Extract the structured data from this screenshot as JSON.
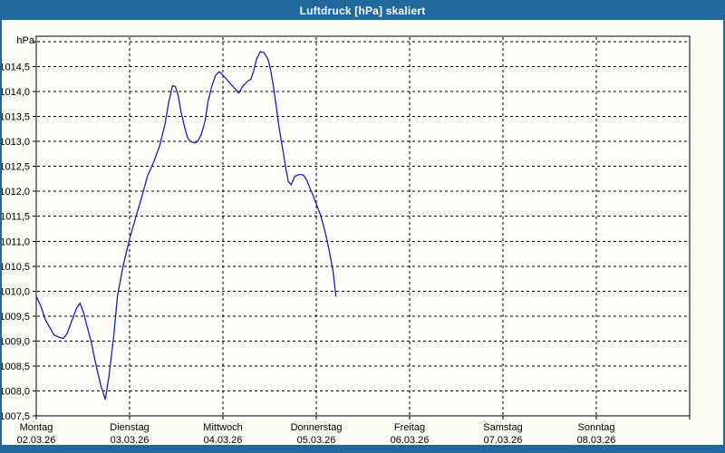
{
  "window": {
    "title": "Luftdruck [hPa] skaliert",
    "theme": {
      "titlebar_color": "#1f699c",
      "border_color": "#1f699c",
      "window_background": "#fcfcf4",
      "plot_background": "#fefefb",
      "grid_color": "#000000",
      "text_color": "#000000",
      "line_color": "#1c1cc4"
    }
  },
  "chart_data": {
    "type": "line",
    "title": "Luftdruck [hPa] skaliert",
    "unit_label": "hPa",
    "grid": "dashed",
    "legend": "none",
    "y_axis": {
      "min": 1007.5,
      "max": 1015.0,
      "step": 0.5,
      "tick_labels": [
        "1014,5",
        "1014,0",
        "1013,5",
        "1013,0",
        "1012,5",
        "1012,0",
        "1011,5",
        "1011,0",
        "1010,5",
        "1010,0",
        "1009,5",
        "1009,0",
        "1008,5",
        "1008,0",
        "1007,5"
      ]
    },
    "x_axis": {
      "span_days": 7,
      "days": [
        {
          "weekday": "Montag",
          "date": "02.03.26"
        },
        {
          "weekday": "Dienstag",
          "date": "03.03.26"
        },
        {
          "weekday": "Mittwoch",
          "date": "04.03.26"
        },
        {
          "weekday": "Donnerstag",
          "date": "05.03.26"
        },
        {
          "weekday": "Freitag",
          "date": "06.03.26"
        },
        {
          "weekday": "Samstag",
          "date": "07.03.26"
        },
        {
          "weekday": "Sonntag",
          "date": "08.03.26"
        }
      ]
    },
    "series": [
      {
        "name": "Luftdruck",
        "color": "#1c1cc4",
        "points": [
          [
            0.0,
            1009.9
          ],
          [
            0.05,
            1009.7
          ],
          [
            0.1,
            1009.42
          ],
          [
            0.15,
            1009.25
          ],
          [
            0.19,
            1009.12
          ],
          [
            0.24,
            1009.08
          ],
          [
            0.29,
            1009.05
          ],
          [
            0.33,
            1009.15
          ],
          [
            0.39,
            1009.45
          ],
          [
            0.43,
            1009.65
          ],
          [
            0.47,
            1009.76
          ],
          [
            0.51,
            1009.55
          ],
          [
            0.55,
            1009.25
          ],
          [
            0.59,
            1008.97
          ],
          [
            0.64,
            1008.52
          ],
          [
            0.69,
            1008.12
          ],
          [
            0.74,
            1007.83
          ],
          [
            0.78,
            1008.3
          ],
          [
            0.83,
            1009.1
          ],
          [
            0.87,
            1009.9
          ],
          [
            0.93,
            1010.5
          ],
          [
            1.0,
            1011.05
          ],
          [
            1.07,
            1011.5
          ],
          [
            1.14,
            1011.95
          ],
          [
            1.19,
            1012.3
          ],
          [
            1.26,
            1012.6
          ],
          [
            1.32,
            1012.9
          ],
          [
            1.38,
            1013.35
          ],
          [
            1.42,
            1013.8
          ],
          [
            1.46,
            1014.12
          ],
          [
            1.49,
            1014.1
          ],
          [
            1.52,
            1013.92
          ],
          [
            1.55,
            1013.6
          ],
          [
            1.59,
            1013.28
          ],
          [
            1.62,
            1013.08
          ],
          [
            1.65,
            1013.0
          ],
          [
            1.7,
            1012.97
          ],
          [
            1.73,
            1013.0
          ],
          [
            1.77,
            1013.15
          ],
          [
            1.81,
            1013.42
          ],
          [
            1.84,
            1013.8
          ],
          [
            1.88,
            1014.1
          ],
          [
            1.92,
            1014.32
          ],
          [
            1.96,
            1014.4
          ],
          [
            2.0,
            1014.33
          ],
          [
            2.06,
            1014.2
          ],
          [
            2.12,
            1014.08
          ],
          [
            2.17,
            1013.97
          ],
          [
            2.21,
            1014.1
          ],
          [
            2.26,
            1014.2
          ],
          [
            2.3,
            1014.25
          ],
          [
            2.33,
            1014.42
          ],
          [
            2.36,
            1014.65
          ],
          [
            2.4,
            1014.8
          ],
          [
            2.44,
            1014.78
          ],
          [
            2.48,
            1014.66
          ],
          [
            2.51,
            1014.45
          ],
          [
            2.54,
            1014.12
          ],
          [
            2.57,
            1013.72
          ],
          [
            2.6,
            1013.3
          ],
          [
            2.64,
            1012.85
          ],
          [
            2.67,
            1012.5
          ],
          [
            2.7,
            1012.2
          ],
          [
            2.73,
            1012.13
          ],
          [
            2.77,
            1012.3
          ],
          [
            2.82,
            1012.34
          ],
          [
            2.86,
            1012.33
          ],
          [
            2.9,
            1012.22
          ],
          [
            2.93,
            1012.07
          ],
          [
            2.97,
            1011.9
          ],
          [
            3.0,
            1011.75
          ],
          [
            3.05,
            1011.5
          ],
          [
            3.1,
            1011.15
          ],
          [
            3.14,
            1010.8
          ],
          [
            3.18,
            1010.4
          ],
          [
            3.21,
            1009.9
          ]
        ]
      }
    ]
  }
}
